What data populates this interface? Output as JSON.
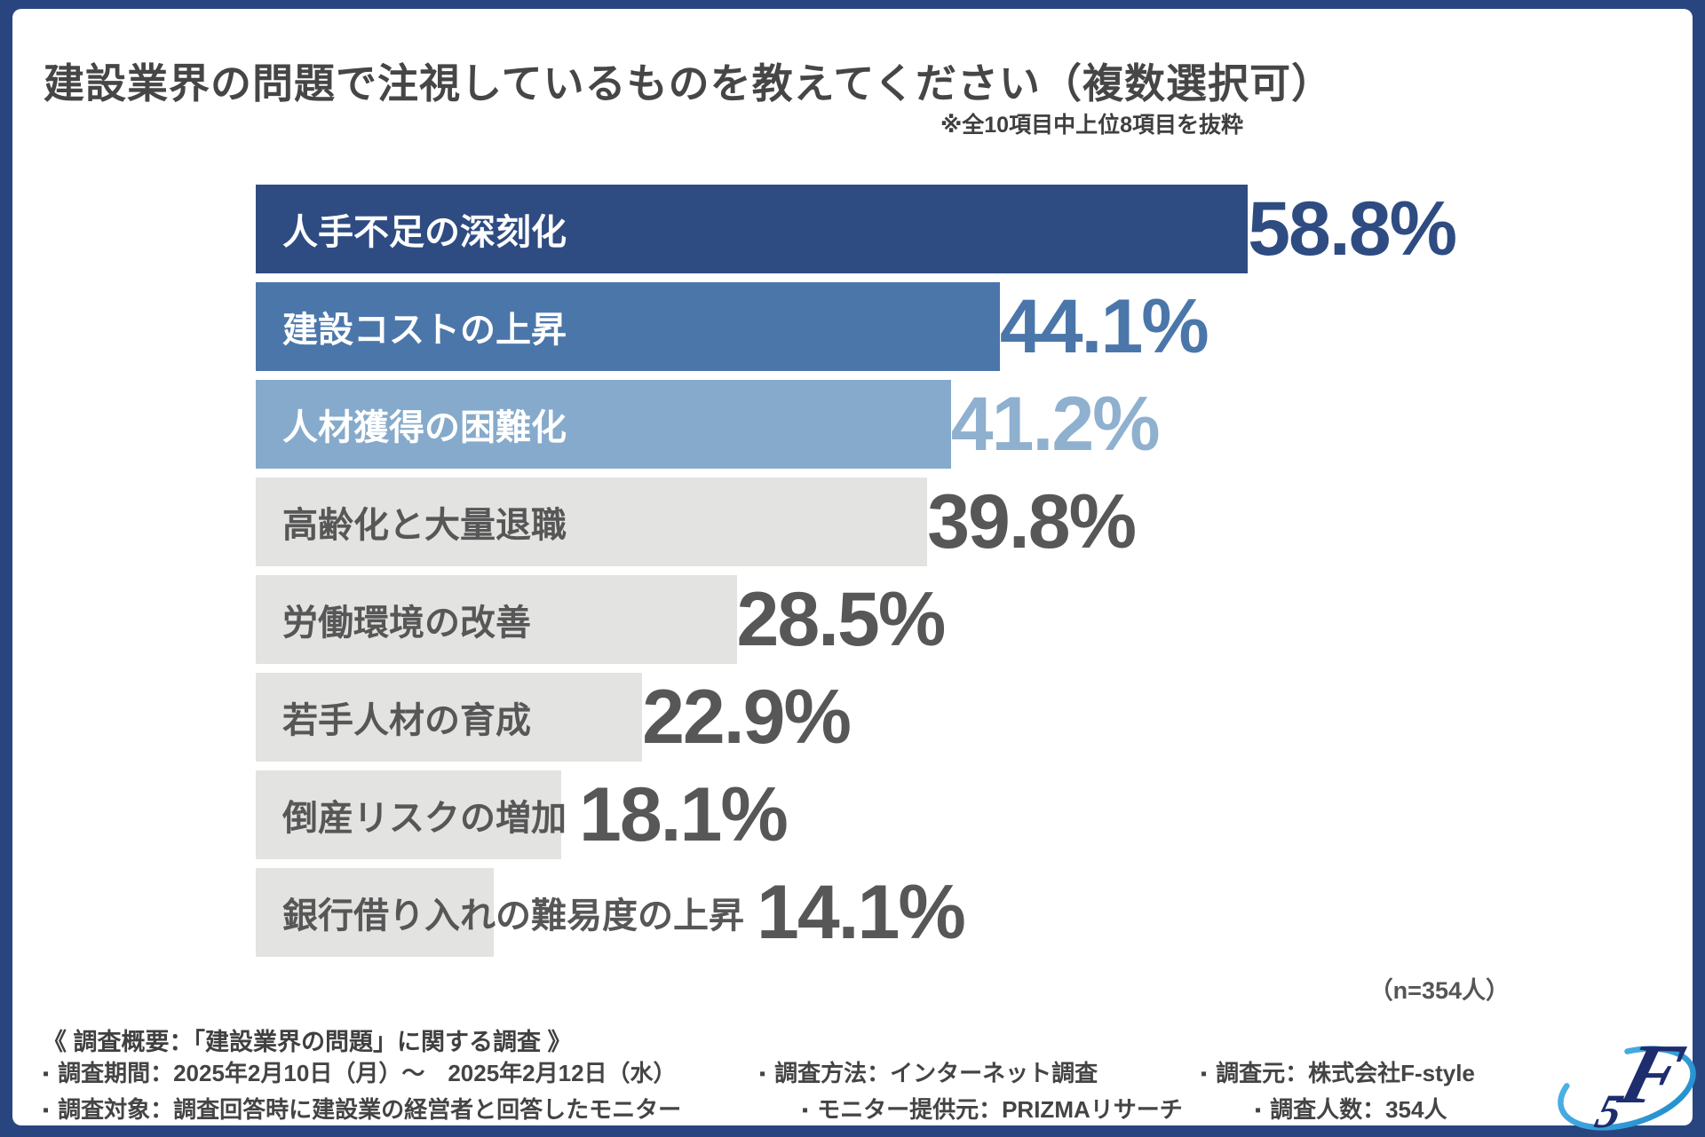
{
  "header": {
    "title": "建設業界の問題で注視しているものを教えてください（複数選択可）",
    "note": "※全10項目中上位8項目を抜粋"
  },
  "chart_data": {
    "type": "bar",
    "orientation": "horizontal",
    "title": "建設業界の問題で注視しているものを教えてください（複数選択可）",
    "subtitle": "※全10項目中上位8項目を抜粋",
    "categories": [
      "人手不足の深刻化",
      "建設コストの上昇",
      "人材獲得の困難化",
      "高齢化と大量退職",
      "労働環境の改善",
      "若手人材の育成",
      "倒産リスクの増加",
      "銀行借り入れの難易度の上昇"
    ],
    "values": [
      58.8,
      44.1,
      41.2,
      39.8,
      28.5,
      22.9,
      18.1,
      14.1
    ],
    "value_labels": [
      "58.8%",
      "44.1%",
      "41.2%",
      "39.8%",
      "28.5%",
      "22.9%",
      "18.1%",
      "14.1%"
    ],
    "xlim": [
      0,
      60
    ],
    "grid": false,
    "legend": false,
    "sample_size": 354,
    "n_label": "（n=354人）",
    "bar_colors": [
      "#2E4C82",
      "#4B76AA",
      "#86AACB",
      "#E3E3E1",
      "#E3E3E1",
      "#E3E3E1",
      "#E3E3E1",
      "#E3E3E1"
    ],
    "label_colors": [
      "#FFFFFF",
      "#FFFFFF",
      "#FFFFFF",
      "#575757",
      "#575757",
      "#575757",
      "#575757",
      "#575757"
    ],
    "value_colors": [
      "#2E4C82",
      "#4B76AA",
      "#8FB0CF",
      "#575757",
      "#575757",
      "#575757",
      "#575757",
      "#575757"
    ]
  },
  "footer": {
    "heading": "《 調査概要：「建設業界の問題」に関する調査 》",
    "bullet": "▪",
    "items": [
      {
        "text": "調査期間：2025年2月10日（月）〜　2025年2月12日（水）"
      },
      {
        "text": "調査対象：調査回答時に建設業の経営者と回答したモニター"
      },
      {
        "text": "調査方法：インターネット調査"
      },
      {
        "text": "モニター提供元：PRIZMAリサーチ"
      },
      {
        "text": "調査元：株式会社F-style"
      },
      {
        "text": "調査人数：354人"
      }
    ]
  },
  "logo": {
    "name": "F-style"
  },
  "colors": {
    "frame": "#28457F",
    "accent_dark": "#2E4C82",
    "accent_mid": "#4B76AA",
    "accent_light": "#86AACB",
    "bar_gray": "#E3E3E1",
    "text_dark": "#464646",
    "text_gray": "#575757",
    "logo_swoosh": "#2F9AD6",
    "logo_navy": "#1D2D6E"
  }
}
